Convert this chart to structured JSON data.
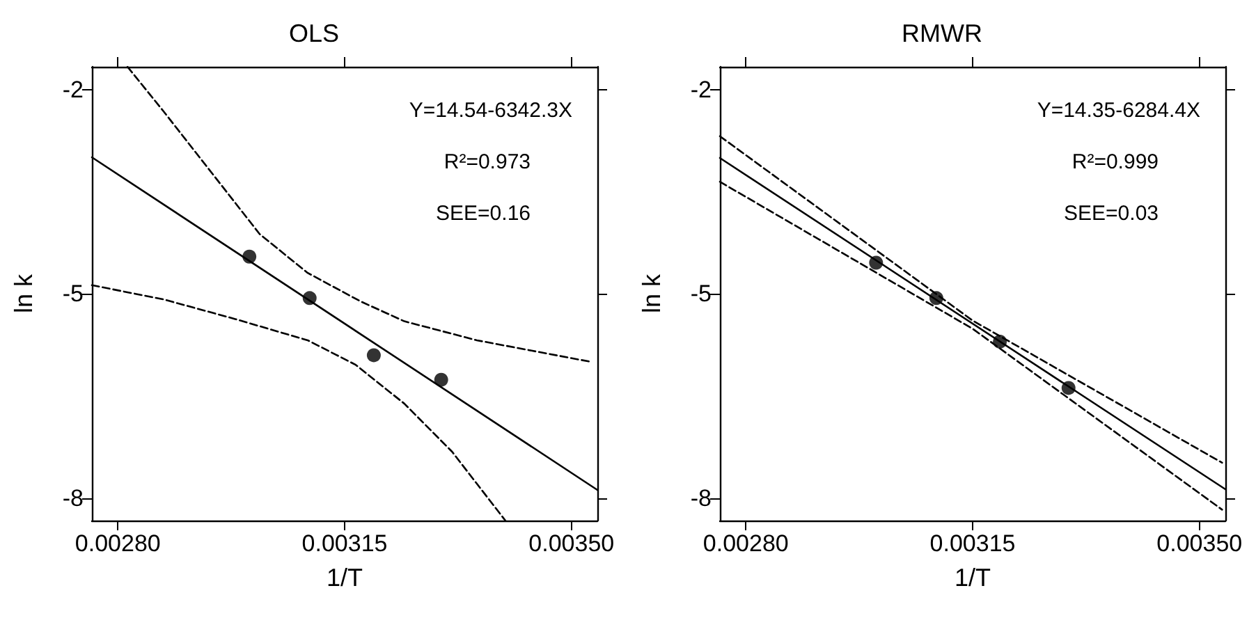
{
  "chart_data": [
    {
      "type": "scatter",
      "title": "OLS",
      "xlabel": "1/T",
      "ylabel": "ln k",
      "annotations": [
        "Y=14.54-6342.3X",
        "R²=0.973",
        "SEE=0.16"
      ],
      "xlim": [
        0.00276,
        0.00354
      ],
      "ylim": [
        -8.33,
        -1.66
      ],
      "xticks": [
        {
          "value": 0.0028,
          "label": "0.00280"
        },
        {
          "value": 0.00315,
          "label": "0.00315"
        },
        {
          "value": 0.0035,
          "label": "0.00350"
        }
      ],
      "yticks": [
        -8,
        -5,
        -2
      ],
      "grid": false,
      "series": [
        {
          "marker": "circle",
          "color": "#000000",
          "x": [
            0.003003,
            0.003096,
            0.003195,
            0.003299
          ],
          "values": [
            -4.45,
            -5.06,
            -5.9,
            -6.26
          ]
        },
        {
          "type": "line",
          "marker": "none",
          "color": "#000000",
          "line_style": "solid",
          "x": [
            0.00276,
            0.00354
          ],
          "values": [
            -2.99,
            -7.88
          ]
        },
        {
          "type": "line",
          "marker": "none",
          "color": "#000000",
          "line_style": "dashed",
          "x": [
            0.002815,
            0.002871,
            0.002945,
            0.003019,
            0.003093,
            0.003175,
            0.003242,
            0.003354,
            0.003532
          ],
          "values": [
            -1.66,
            -2.32,
            -3.22,
            -4.12,
            -4.69,
            -5.11,
            -5.4,
            -5.68,
            -6.0
          ]
        },
        {
          "type": "line",
          "marker": "none",
          "color": "#000000",
          "line_style": "dashed",
          "x": [
            0.00276,
            0.002871,
            0.002982,
            0.003093,
            0.003167,
            0.003242,
            0.003316,
            0.003398
          ],
          "values": [
            -4.87,
            -5.08,
            -5.37,
            -5.68,
            -6.04,
            -6.61,
            -7.32,
            -8.33
          ]
        }
      ]
    },
    {
      "type": "scatter",
      "title": "RMWR",
      "xlabel": "1/T",
      "ylabel": "ln k",
      "annotations": [
        "Y=14.35-6284.4X",
        "R²=0.999",
        "SEE=0.03"
      ],
      "xlim": [
        0.00276,
        0.00354
      ],
      "ylim": [
        -8.33,
        -1.66
      ],
      "xticks": [
        {
          "value": 0.0028,
          "label": "0.00280"
        },
        {
          "value": 0.00315,
          "label": "0.00315"
        },
        {
          "value": 0.0035,
          "label": "0.00350"
        }
      ],
      "yticks": [
        -8,
        -5,
        -2
      ],
      "grid": false,
      "series": [
        {
          "marker": "circle",
          "color": "#000000",
          "x": [
            0.003001,
            0.003094,
            0.003192,
            0.003298
          ],
          "values": [
            -4.54,
            -5.06,
            -5.7,
            -6.38
          ]
        },
        {
          "type": "line",
          "marker": "none",
          "color": "#000000",
          "line_style": "solid",
          "x": [
            0.00276,
            0.00354
          ],
          "values": [
            -3.0,
            -7.87
          ]
        },
        {
          "type": "line",
          "marker": "none",
          "color": "#000000",
          "line_style": "dashed",
          "x": [
            0.00276,
            0.00315,
            0.003535
          ],
          "values": [
            -2.68,
            -5.39,
            -7.48
          ]
        },
        {
          "type": "line",
          "marker": "none",
          "color": "#000000",
          "line_style": "dashed",
          "x": [
            0.00276,
            0.00315,
            0.003535
          ],
          "values": [
            -3.35,
            -5.51,
            -8.17
          ]
        }
      ]
    }
  ]
}
